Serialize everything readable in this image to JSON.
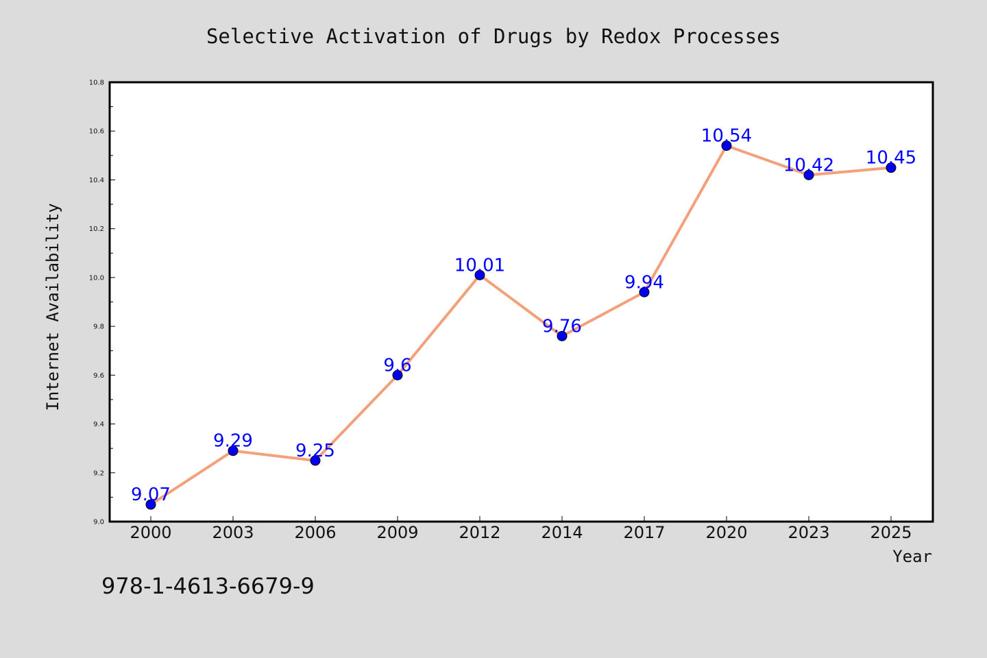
{
  "colors": {
    "background": "#dcdcdc",
    "plot_background": "#ffffff",
    "line": "#f4a07a",
    "marker": "#0000ee",
    "data_label": "#0000ff"
  },
  "footer_text": "978-1-4613-6679-9",
  "chart_data": {
    "type": "line",
    "title": "Selective Activation of Drugs by Redox Processes",
    "xlabel": "Year",
    "ylabel": "Internet Availability",
    "categories": [
      "2000",
      "2003",
      "2006",
      "2009",
      "2012",
      "2014",
      "2017",
      "2020",
      "2023",
      "2025"
    ],
    "series": [
      {
        "values": [
          9.07,
          9.29,
          9.25,
          9.6,
          10.01,
          9.76,
          9.94,
          10.54,
          10.42,
          10.45
        ],
        "labels": [
          "9.07",
          "9.29",
          "9.25",
          "9.6",
          "10.01",
          "9.76",
          "9.94",
          "10.54",
          "10.42",
          "10.45"
        ]
      }
    ],
    "ylim": [
      9.0,
      10.8
    ],
    "yticks": [
      "9.0",
      "9.2",
      "9.4",
      "9.6",
      "9.8",
      "10.0",
      "10.2",
      "10.4",
      "10.6",
      "10.8"
    ],
    "grid": false,
    "legend": "none"
  }
}
